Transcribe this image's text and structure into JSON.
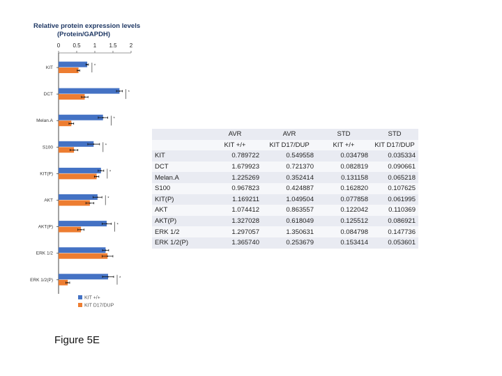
{
  "chart_data": {
    "type": "bar",
    "orientation": "horizontal",
    "title": "Relative protein expression levels",
    "subtitle": "(Protein/GAPDH)",
    "categories": [
      "KIT",
      "DCT",
      "Melan.A",
      "S100",
      "KIT(P)",
      "AKT",
      "AKT(P)",
      "ERK 1/2",
      "ERK 1/2(P)"
    ],
    "xlim": [
      0,
      2
    ],
    "xticks": [
      "0",
      "0.5",
      "1",
      "1.5",
      "2"
    ],
    "series": [
      {
        "name": "KIT +/+",
        "color": "#4472c4",
        "values": [
          0.789722,
          1.679923,
          1.225269,
          0.967823,
          1.169211,
          1.074412,
          1.327028,
          1.297057,
          1.36574
        ],
        "errors": [
          0.034798,
          0.082819,
          0.131158,
          0.16282,
          0.077858,
          0.122042,
          0.125512,
          0.084798,
          0.153414
        ]
      },
      {
        "name": "KIT D17/DUP",
        "color": "#ed7d31",
        "values": [
          0.549558,
          0.72137,
          0.352414,
          0.424887,
          1.049504,
          0.863557,
          0.618049,
          1.350631,
          0.253679
        ],
        "errors": [
          0.035334,
          0.090661,
          0.065218,
          0.107625,
          0.061995,
          0.110369,
          0.086921,
          0.147736,
          0.053601
        ]
      }
    ],
    "significance": [
      "*",
      "*",
      "*",
      "*",
      "*",
      "*",
      "*",
      "",
      "*"
    ],
    "legend": [
      "KIT +/+",
      "KIT D17/DUP"
    ]
  },
  "table": {
    "header_row1": [
      "",
      "AVR",
      "AVR",
      "STD",
      "STD"
    ],
    "header_row2": [
      "",
      "KIT +/+",
      "KIT D17/DUP",
      "KIT +/+",
      "KIT D17/DUP"
    ],
    "rows": [
      [
        "KIT",
        "0.789722",
        "0.549558",
        "0.034798",
        "0.035334"
      ],
      [
        "DCT",
        "1.679923",
        "0.721370",
        "0.082819",
        "0.090661"
      ],
      [
        "Melan.A",
        "1.225269",
        "0.352414",
        "0.131158",
        "0.065218"
      ],
      [
        "S100",
        "0.967823",
        "0.424887",
        "0.162820",
        "0.107625"
      ],
      [
        "KIT(P)",
        "1.169211",
        "1.049504",
        "0.077858",
        "0.061995"
      ],
      [
        "AKT",
        "1.074412",
        "0.863557",
        "0.122042",
        "0.110369"
      ],
      [
        "AKT(P)",
        "1.327028",
        "0.618049",
        "0.125512",
        "0.086921"
      ],
      [
        "ERK 1/2",
        "1.297057",
        "1.350631",
        "0.084798",
        "0.147736"
      ],
      [
        "ERK 1/2(P)",
        "1.365740",
        "0.253679",
        "0.153414",
        "0.053601"
      ]
    ]
  },
  "caption": "Figure 5E"
}
